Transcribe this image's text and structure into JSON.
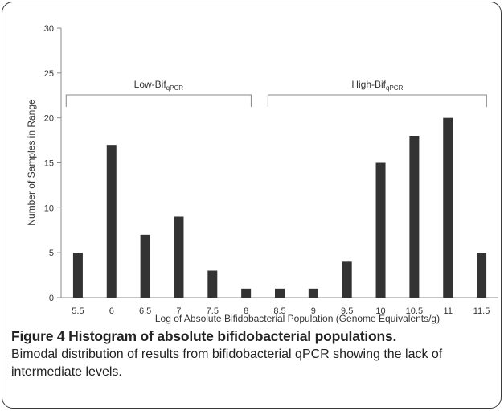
{
  "chart_data": {
    "type": "bar",
    "categories": [
      "5.5",
      "6",
      "6.5",
      "7",
      "7.5",
      "8",
      "8.5",
      "9",
      "9.5",
      "10",
      "10.5",
      "11",
      "11.5"
    ],
    "values": [
      5,
      17,
      7,
      9,
      3,
      1,
      1,
      1,
      4,
      15,
      18,
      20,
      5
    ],
    "xlabel": "Log of Absolute Bifidobacterial Population (Genome Equivalents/g)",
    "ylabel": "Number of Samples in Range",
    "ylim": [
      0,
      30
    ],
    "yticks": [
      "0",
      "5",
      "10",
      "15",
      "20",
      "25",
      "30"
    ],
    "grid": false,
    "bar_color": "#333333",
    "annotations": [
      {
        "label": "Low-Bif",
        "subscript": "qPCR",
        "from_category": "5.5",
        "to_category": "8"
      },
      {
        "label": "High-Bif",
        "subscript": "qPCR",
        "from_category": "8.5",
        "to_category": "11.5"
      }
    ]
  },
  "caption": {
    "title": "Figure 4 Histogram of absolute bifidobacterial populations.",
    "body": "Bimodal distribution of results from bifidobacterial qPCR showing the lack of intermediate levels."
  }
}
